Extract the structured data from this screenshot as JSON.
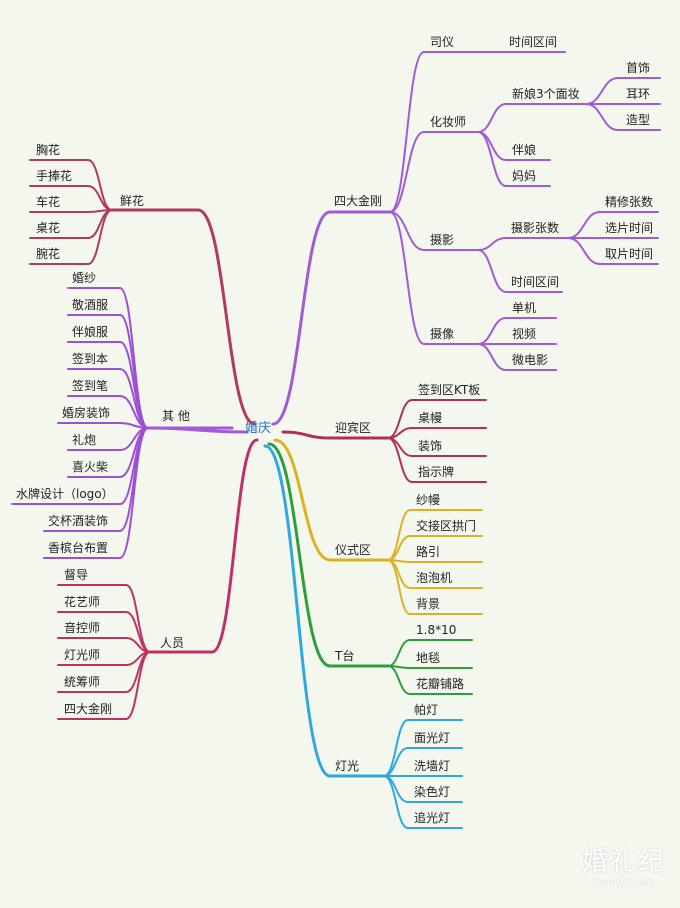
{
  "root": "婚庆",
  "watermark": {
    "text": "婚礼纪",
    "url": "hunliji.com"
  },
  "colors": {
    "a": "#b23a5c",
    "b": "#a45ad6",
    "c": "#c03060",
    "d": "#9c50d6",
    "e": "#b03058",
    "f": "#e0b020",
    "g": "#2f9e3a",
    "h": "#2fa8e0"
  },
  "branches": {
    "flowers": {
      "label": "鲜花",
      "items": [
        "胸花",
        "手捧花",
        "车花",
        "桌花",
        "腕花"
      ]
    },
    "others": {
      "label": "其 他",
      "items": [
        "婚纱",
        "敬酒服",
        "伴娘服",
        "签到本",
        "签到笔",
        "婚房装饰",
        "礼炮",
        "喜火柴",
        "水牌设计（logo）",
        "交杯酒装饰",
        "香槟台布置"
      ]
    },
    "staff": {
      "label": "人员",
      "items": [
        "督导",
        "花艺师",
        "音控师",
        "灯光师",
        "统筹师",
        "四大金刚"
      ]
    },
    "four": {
      "label": "四大金刚",
      "host": {
        "label": "司仪",
        "child": "时间区间"
      },
      "makeup": {
        "label": "化妆师",
        "bride": "新娘3个面妆",
        "bride_items": [
          "首饰",
          "耳环",
          "造型"
        ],
        "others": [
          "伴娘",
          "妈妈"
        ]
      },
      "photo": {
        "label": "摄影",
        "count": "摄影张数",
        "count_items": [
          "精修张数",
          "选片时间",
          "取片时间"
        ],
        "time": "时间区间"
      },
      "video": {
        "label": "摄像",
        "items": [
          "单机",
          "视频",
          "微电影"
        ]
      }
    },
    "welcome": {
      "label": "迎宾区",
      "items": [
        "签到区KT板",
        "桌幔",
        "装饰",
        "指示牌"
      ]
    },
    "ceremony": {
      "label": "仪式区",
      "items": [
        "纱幔",
        "交接区拱门",
        "路引",
        "泡泡机",
        "背景"
      ]
    },
    "tstage": {
      "label": "T台",
      "items": [
        "1.8*10",
        "地毯",
        "花瓣铺路"
      ]
    },
    "lighting": {
      "label": "灯光",
      "items": [
        "帕灯",
        "面光灯",
        "洗墙灯",
        "染色灯",
        "追光灯"
      ]
    }
  }
}
